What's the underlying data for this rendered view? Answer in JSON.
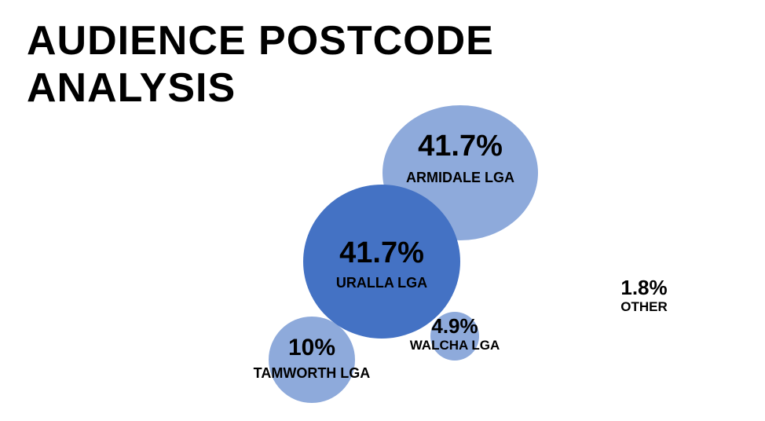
{
  "title_line1": "AUDIENCE POSTCODE",
  "title_line2": "ANALYSIS",
  "chart_data": {
    "type": "bubble",
    "title": "AUDIENCE POSTCODE ANALYSIS",
    "unit": "%",
    "legend": "none",
    "grid": false,
    "series": [
      {
        "category": "ARMIDALE LGA",
        "value": 41.7,
        "label": "41.7%",
        "color": "#8eaadb"
      },
      {
        "category": "URALLA LGA",
        "value": 41.7,
        "label": "41.7%",
        "color": "#4472c4"
      },
      {
        "category": "TAMWORTH LGA",
        "value": 10,
        "label": "10%",
        "color": "#8eaadb"
      },
      {
        "category": "WALCHA LGA",
        "value": 4.9,
        "label": "4.9%",
        "color": "#8eaadb"
      },
      {
        "category": "OTHER",
        "value": 1.8,
        "label": "1.8%",
        "color": "#8eaadb"
      }
    ]
  }
}
